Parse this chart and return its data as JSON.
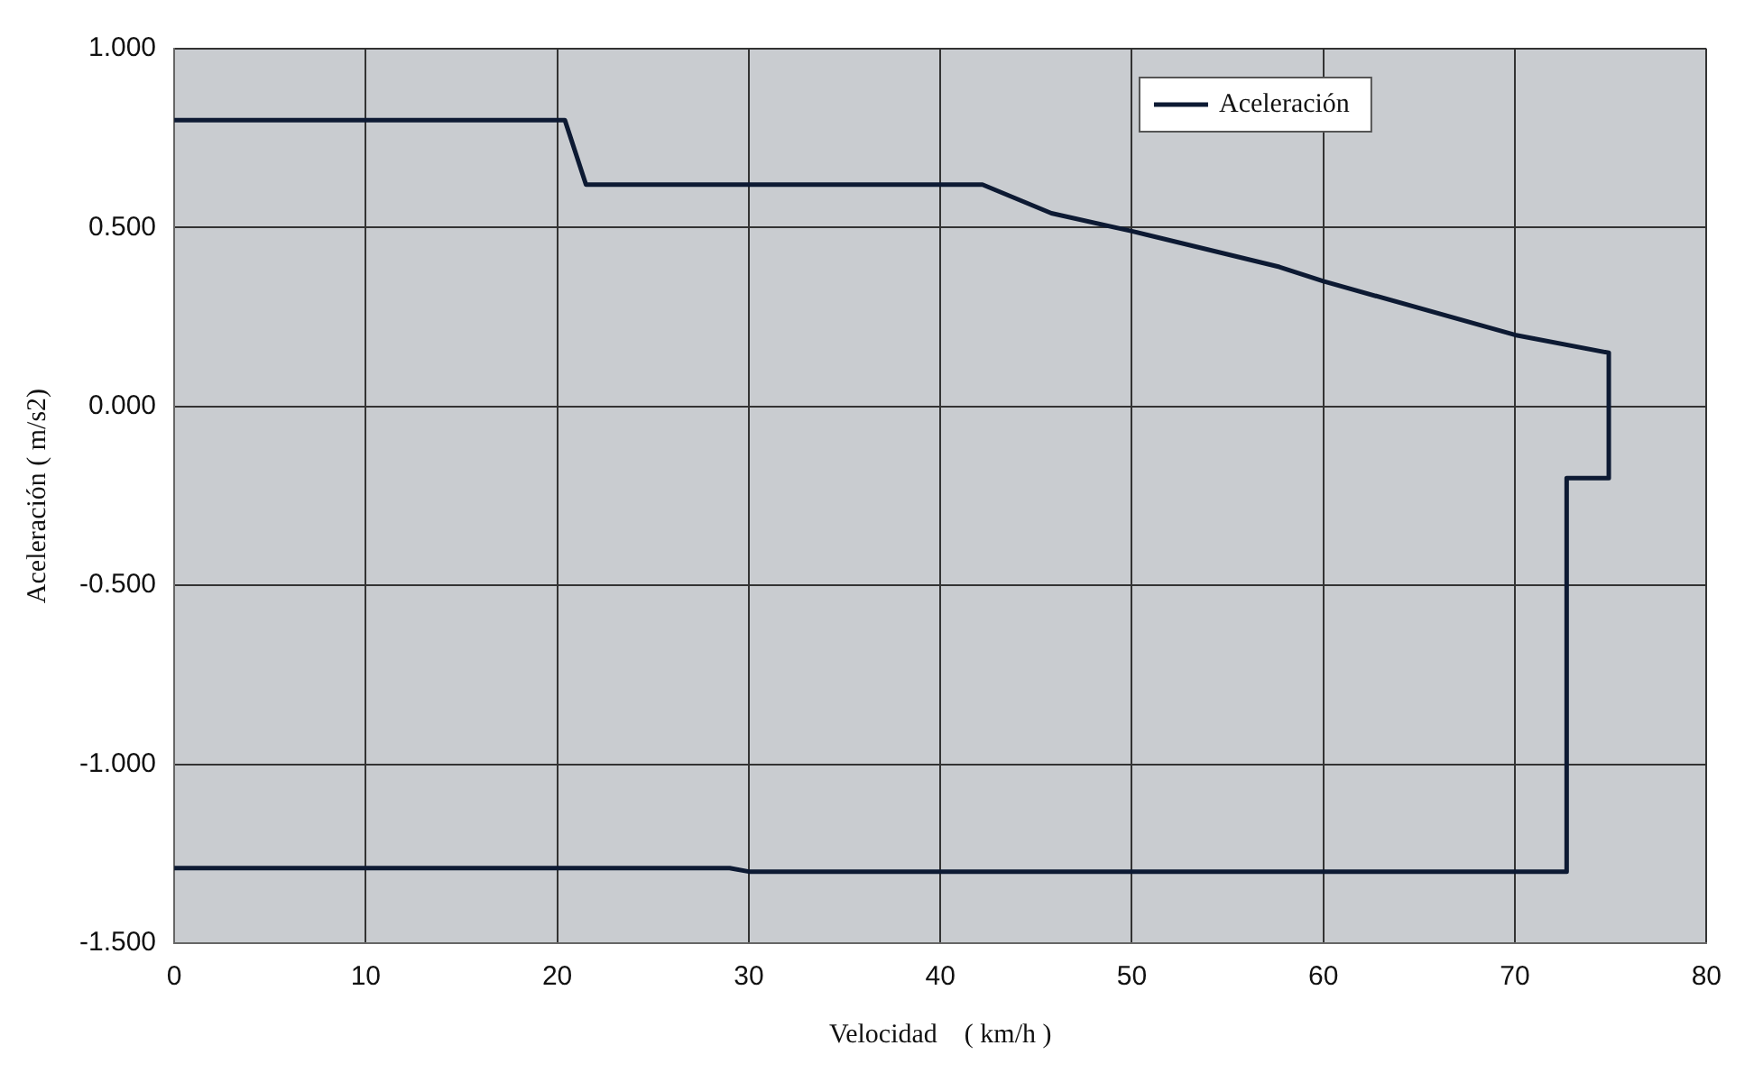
{
  "chart_data": {
    "type": "line",
    "xlabel": "Velocidad　( km/h )",
    "ylabel": "Aceleración ( m/s2)",
    "xlim": [
      0,
      80
    ],
    "xticks": [
      0,
      10,
      20,
      30,
      40,
      50,
      60,
      70,
      80
    ],
    "ylim": [
      -1.5,
      1.0
    ],
    "yticks": [
      {
        "value": 1.0,
        "label": "1.000"
      },
      {
        "value": 0.5,
        "label": "0.500"
      },
      {
        "value": 0,
        "label": "0.000"
      },
      {
        "value": -0.5,
        "label": "-0.500"
      },
      {
        "value": -1.0,
        "label": "-1.000"
      },
      {
        "value": -1.5,
        "label": "-1.500"
      }
    ],
    "grid": true,
    "legend": "top right",
    "marker": "none",
    "line_style": "solid",
    "series": [
      {
        "name": "Aceleración",
        "color": "#0d1a33",
        "x": [
          0,
          20.4,
          21.5,
          42.2,
          45.8,
          50,
          57.7,
          60,
          70,
          74.9,
          74.9,
          72.7,
          72.7,
          30,
          29,
          0
        ],
        "values": [
          0.8,
          0.8,
          0.62,
          0.62,
          0.54,
          0.49,
          0.39,
          0.35,
          0.2,
          0.15,
          -0.2,
          -0.2,
          -1.3,
          -1.3,
          -1.29,
          -1.29
        ]
      }
    ]
  }
}
